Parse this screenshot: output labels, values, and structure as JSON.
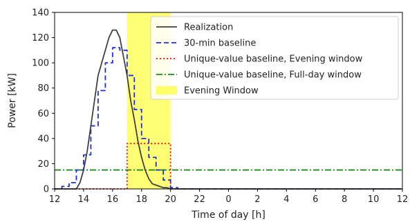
{
  "chart_data": {
    "type": "line",
    "xlabel": "Time of day [h]",
    "ylabel": "Power [kW]",
    "xlim": [
      12,
      36
    ],
    "ylim": [
      0,
      140
    ],
    "x_ticks": [
      12,
      14,
      16,
      18,
      20,
      22,
      24,
      26,
      28,
      30,
      32,
      34,
      36
    ],
    "x_tick_labels": [
      "12",
      "14",
      "16",
      "18",
      "20",
      "22",
      "0",
      "2",
      "4",
      "6",
      "8",
      "10",
      "12"
    ],
    "y_ticks": [
      0,
      20,
      40,
      60,
      80,
      100,
      120,
      140
    ],
    "y_tick_labels": [
      "0",
      "20",
      "40",
      "60",
      "80",
      "100",
      "120",
      "140"
    ],
    "grid": false,
    "legend_position": "top-right",
    "colors": {
      "realization": "#404040",
      "baseline_30min": "#1f2fd6",
      "evening_baseline": "#ff0000",
      "fullday_baseline": "#1a8c1a",
      "evening_window": "#ffff66"
    },
    "shaded_regions": [
      {
        "name": "Evening Window",
        "x_start": 17,
        "x_end": 20
      }
    ],
    "series": [
      {
        "name": "Realization",
        "style": "solid",
        "x": [
          12,
          13.5,
          13.75,
          14.0,
          14.25,
          14.5,
          14.75,
          15.0,
          15.25,
          15.5,
          15.75,
          16.0,
          16.25,
          16.5,
          16.75,
          17.0,
          17.25,
          17.5,
          17.75,
          18.0,
          18.25,
          18.5,
          18.75,
          19.0,
          19.25,
          19.5,
          19.75,
          20.0,
          20.25,
          20.5,
          36
        ],
        "y": [
          0,
          0,
          5,
          15,
          30,
          50,
          70,
          90,
          100,
          110,
          120,
          126,
          126,
          120,
          105,
          90,
          70,
          55,
          38,
          25,
          15,
          8,
          4,
          3,
          2,
          1,
          1,
          0,
          0,
          0,
          0
        ]
      },
      {
        "name": "30-min baseline",
        "style": "dashed",
        "x": [
          12,
          12.5,
          13,
          13.5,
          14,
          14.5,
          15,
          15.5,
          16,
          16.5,
          17,
          17.5,
          18,
          18.5,
          19,
          19.5,
          20,
          20.5,
          36
        ],
        "y": [
          0,
          2,
          5,
          15,
          27,
          50,
          78,
          100,
          112,
          110,
          90,
          63,
          40,
          25,
          15,
          7,
          1,
          0,
          0
        ]
      },
      {
        "name": "Unique-value baseline, Evening window",
        "style": "dotted",
        "x": [
          12,
          17,
          17,
          20,
          20,
          36
        ],
        "y": [
          0,
          0,
          36,
          36,
          0,
          0
        ]
      },
      {
        "name": "Unique-value baseline, Full-day window",
        "style": "dashdot",
        "x": [
          12,
          36
        ],
        "y": [
          15,
          15
        ]
      }
    ],
    "legend_entries": [
      "Realization",
      "30-min baseline",
      "Unique-value baseline, Evening window",
      "Unique-value baseline, Full-day window",
      "Evening Window"
    ]
  }
}
